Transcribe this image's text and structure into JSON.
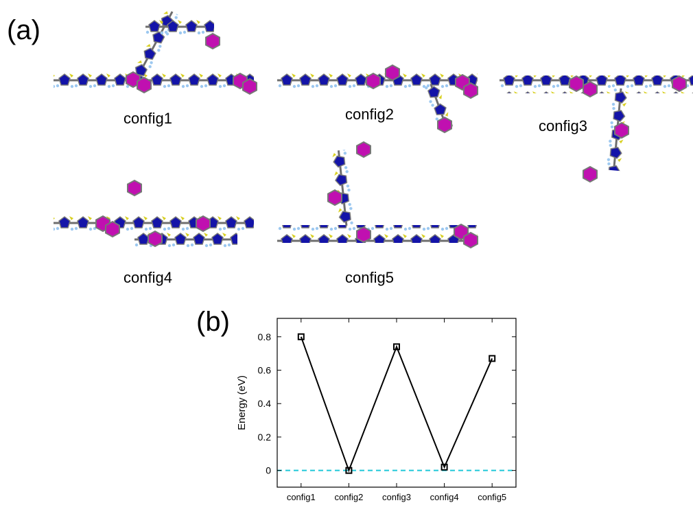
{
  "panel_a": {
    "label": "(a)",
    "structures": [
      "config1",
      "config2",
      "config3",
      "config4",
      "config5"
    ]
  },
  "chart_data": {
    "type": "line",
    "panel_label": "(b)",
    "ylabel": "Energy (eV)",
    "categories": [
      "config1",
      "config2",
      "config3",
      "config4",
      "config5"
    ],
    "series": [
      {
        "color": "#000000",
        "marker": "square",
        "values": [
          0.8,
          0,
          0.74,
          0.02,
          0.67
        ]
      }
    ],
    "ylim": [
      -0.1,
      0.91
    ],
    "yticks": [
      0,
      0.2,
      0.4,
      0.6,
      0.8
    ],
    "reference_line": {
      "value": 0,
      "color": "#1ec8d8",
      "style": "dashed"
    }
  }
}
